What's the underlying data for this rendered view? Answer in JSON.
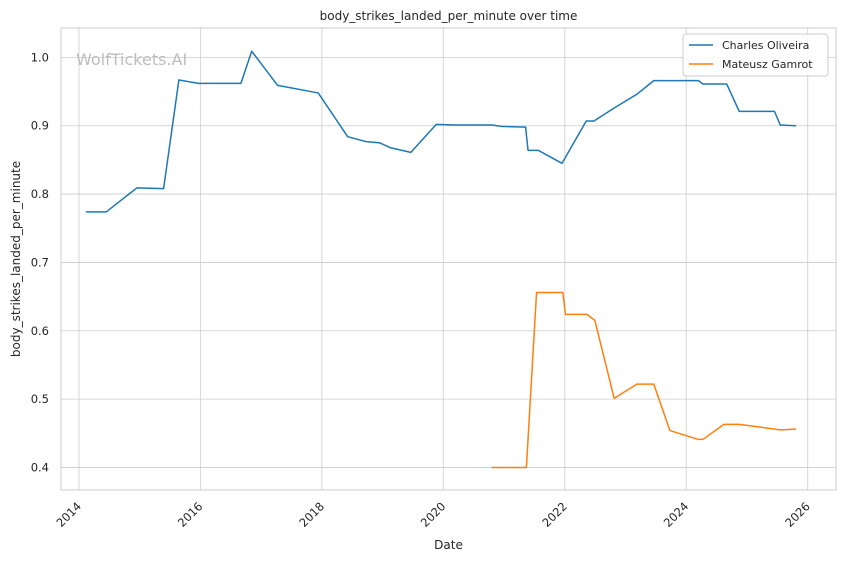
{
  "chart_data": {
    "type": "line",
    "title": "body_strikes_landed_per_minute over time",
    "xlabel": "Date",
    "ylabel": "body_strikes_landed_per_minute",
    "watermark": "WolfTickets.AI",
    "x_axis": {
      "type": "date",
      "range": [
        "2013-09-15",
        "2026-06-20"
      ],
      "ticks": [
        "2014",
        "2016",
        "2018",
        "2020",
        "2022",
        "2024",
        "2026"
      ],
      "tick_rotation": "45deg"
    },
    "y_axis": {
      "range": [
        0.367,
        1.043
      ],
      "ticks": [
        "0.4",
        "0.5",
        "0.6",
        "0.7",
        "0.8",
        "0.9",
        "1.0"
      ]
    },
    "grid": true,
    "legend": {
      "placement": "top-right",
      "entries": [
        "Charles Oliveira",
        "Mateusz Gamrot"
      ]
    },
    "colors": {
      "Charles Oliveira": "#1f77b4",
      "Mateusz Gamrot": "#ff7f0e"
    },
    "series": [
      {
        "name": "Charles Oliveira",
        "color": "#1f77b4",
        "points": [
          {
            "x": "2014-02-15",
            "y": 0.774
          },
          {
            "x": "2014-06-15",
            "y": 0.774
          },
          {
            "x": "2014-12-15",
            "y": 0.809
          },
          {
            "x": "2015-05-25",
            "y": 0.808
          },
          {
            "x": "2015-08-25",
            "y": 0.967
          },
          {
            "x": "2015-12-20",
            "y": 0.962
          },
          {
            "x": "2016-09-01",
            "y": 0.962
          },
          {
            "x": "2016-11-05",
            "y": 1.009
          },
          {
            "x": "2017-04-10",
            "y": 0.959
          },
          {
            "x": "2017-12-10",
            "y": 0.948
          },
          {
            "x": "2018-06-05",
            "y": 0.884
          },
          {
            "x": "2018-09-20",
            "y": 0.877
          },
          {
            "x": "2018-12-15",
            "y": 0.875
          },
          {
            "x": "2019-02-15",
            "y": 0.868
          },
          {
            "x": "2019-06-20",
            "y": 0.861
          },
          {
            "x": "2019-11-20",
            "y": 0.902
          },
          {
            "x": "2020-03-10",
            "y": 0.901
          },
          {
            "x": "2020-10-20",
            "y": 0.901
          },
          {
            "x": "2020-12-15",
            "y": 0.899
          },
          {
            "x": "2021-05-10",
            "y": 0.898
          },
          {
            "x": "2021-05-25",
            "y": 0.864
          },
          {
            "x": "2021-07-25",
            "y": 0.864
          },
          {
            "x": "2021-12-15",
            "y": 0.845
          },
          {
            "x": "2022-05-10",
            "y": 0.907
          },
          {
            "x": "2022-06-25",
            "y": 0.907
          },
          {
            "x": "2022-10-25",
            "y": 0.926
          },
          {
            "x": "2023-03-10",
            "y": 0.946
          },
          {
            "x": "2023-06-20",
            "y": 0.966
          },
          {
            "x": "2024-03-15",
            "y": 0.966
          },
          {
            "x": "2024-04-10",
            "y": 0.961
          },
          {
            "x": "2024-09-01",
            "y": 0.961
          },
          {
            "x": "2024-11-15",
            "y": 0.921
          },
          {
            "x": "2025-06-15",
            "y": 0.921
          },
          {
            "x": "2025-07-20",
            "y": 0.901
          },
          {
            "x": "2025-10-20",
            "y": 0.9
          }
        ]
      },
      {
        "name": "Mateusz Gamrot",
        "color": "#ff7f0e",
        "points": [
          {
            "x": "2020-10-20",
            "y": 0.4
          },
          {
            "x": "2021-05-15",
            "y": 0.4
          },
          {
            "x": "2021-07-15",
            "y": 0.656
          },
          {
            "x": "2021-12-20",
            "y": 0.656
          },
          {
            "x": "2022-01-05",
            "y": 0.624
          },
          {
            "x": "2022-05-15",
            "y": 0.624
          },
          {
            "x": "2022-07-01",
            "y": 0.615
          },
          {
            "x": "2022-10-25",
            "y": 0.501
          },
          {
            "x": "2023-03-10",
            "y": 0.522
          },
          {
            "x": "2023-06-20",
            "y": 0.522
          },
          {
            "x": "2023-09-25",
            "y": 0.454
          },
          {
            "x": "2024-03-15",
            "y": 0.441
          },
          {
            "x": "2024-04-10",
            "y": 0.441
          },
          {
            "x": "2024-08-15",
            "y": 0.463
          },
          {
            "x": "2024-11-15",
            "y": 0.463
          },
          {
            "x": "2025-07-20",
            "y": 0.455
          },
          {
            "x": "2025-10-20",
            "y": 0.456
          }
        ]
      }
    ]
  }
}
